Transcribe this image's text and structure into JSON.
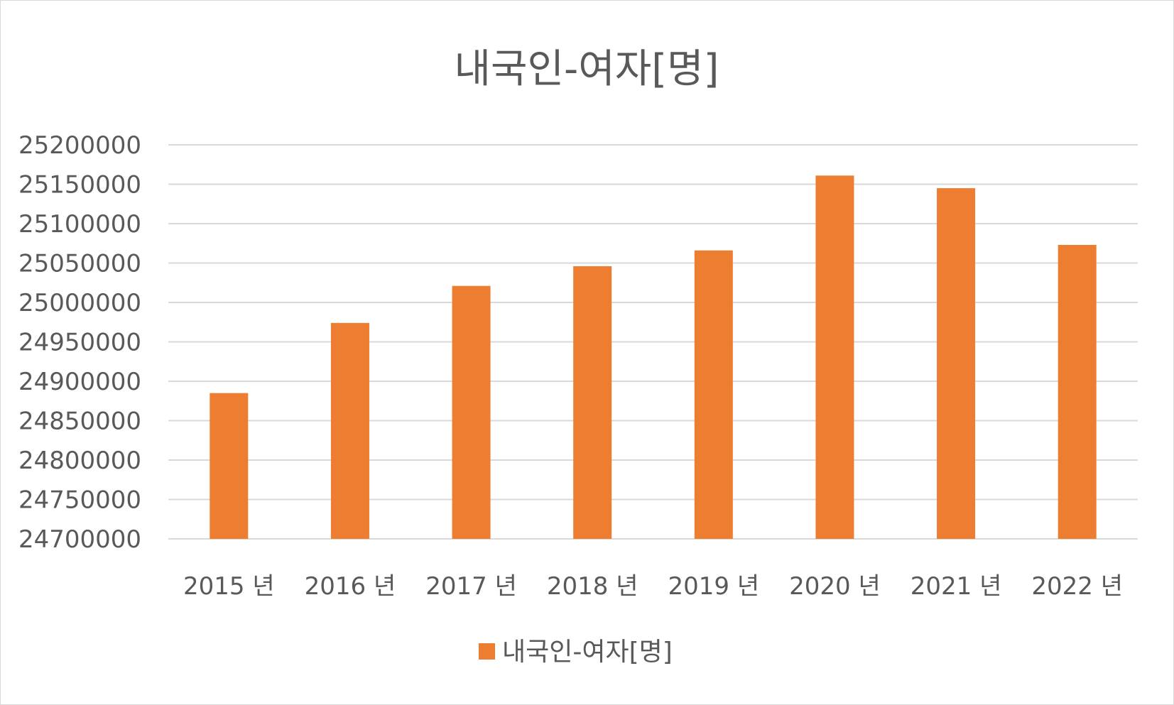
{
  "chart_data": {
    "type": "bar",
    "title": "내국인-여자[명]",
    "categories": [
      "2015 년",
      "2016 년",
      "2017 년",
      "2018 년",
      "2019 년",
      "2020 년",
      "2021 년",
      "2022 년"
    ],
    "series": [
      {
        "name": "내국인-여자[명]",
        "color": "#ED7D31",
        "values": [
          24885000,
          24974000,
          25021000,
          25046000,
          25066000,
          25161000,
          25145000,
          25073000
        ]
      }
    ],
    "xlabel": "",
    "ylabel": "",
    "ylim": [
      24700000,
      25200000
    ],
    "yticks": [
      "24700000",
      "24750000",
      "24800000",
      "24850000",
      "24900000",
      "24950000",
      "25000000",
      "25050000",
      "25100000",
      "25150000",
      "25200000"
    ],
    "grid": true,
    "legend_position": "bottom",
    "colors": {
      "text": "#595959",
      "grid": "#D9D9D9",
      "border": "#D9D9D9"
    }
  }
}
